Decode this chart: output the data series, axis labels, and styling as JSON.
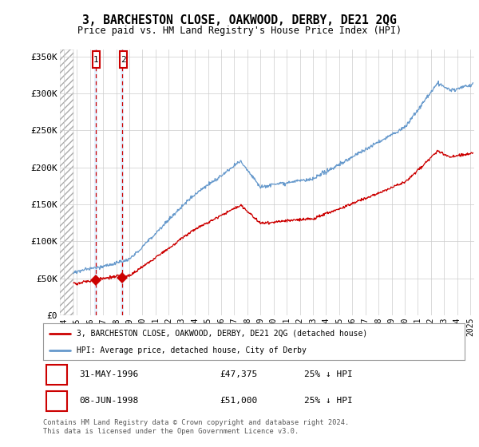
{
  "title": "3, BARCHESTON CLOSE, OAKWOOD, DERBY, DE21 2QG",
  "subtitle": "Price paid vs. HM Land Registry's House Price Index (HPI)",
  "legend_label_red": "3, BARCHESTON CLOSE, OAKWOOD, DERBY, DE21 2QG (detached house)",
  "legend_label_blue": "HPI: Average price, detached house, City of Derby",
  "table_entries": [
    {
      "num": "1",
      "date": "31-MAY-1996",
      "price": "£47,375",
      "note": "25% ↓ HPI"
    },
    {
      "num": "2",
      "date": "08-JUN-1998",
      "price": "£51,000",
      "note": "25% ↓ HPI"
    }
  ],
  "footnote": "Contains HM Land Registry data © Crown copyright and database right 2024.\nThis data is licensed under the Open Government Licence v3.0.",
  "sale_dates": [
    1996.42,
    1998.46
  ],
  "sale_prices": [
    47375,
    51000
  ],
  "ylim": [
    0,
    360000
  ],
  "xlim_start": 1993.7,
  "xlim_end": 2025.3,
  "hatch_end": 1994.75,
  "red_color": "#cc0000",
  "blue_color": "#6699cc",
  "shade_color": "#ddeeff",
  "grid_color": "#cccccc",
  "hatch_edge_color": "#aaaaaa"
}
